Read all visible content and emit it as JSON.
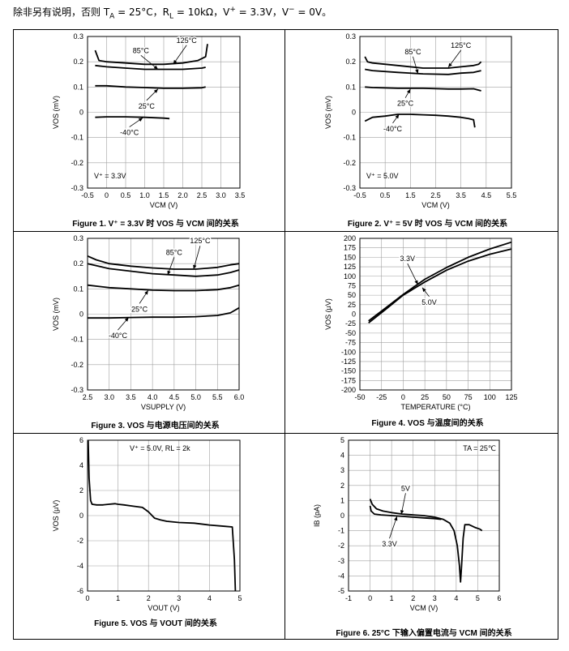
{
  "header": {
    "prefix": "除非另有说明，否则 T",
    "ta_sub": "A",
    "mid1": " = 25°C，R",
    "rl_sub": "L",
    "mid2": " = 10kΩ，V",
    "vplus_sup": "+",
    "mid3": " = 3.3V，V",
    "vminus_sup": "−",
    "end": " = 0V。"
  },
  "chart_data": [
    {
      "id": "fig1",
      "type": "line",
      "caption": "Figure 1. V⁺ = 3.3V 时 VOS 与 VCM 间的关系",
      "xlabel": "VCM (V)",
      "ylabel": "VOS (mV)",
      "xlim": [
        -0.5,
        3.5
      ],
      "ylim": [
        -0.3,
        0.3
      ],
      "xticks": [
        -0.5,
        0,
        0.5,
        1,
        1.5,
        2,
        2.5,
        3,
        3.5
      ],
      "xtick_labels": [
        "-0.5",
        "0",
        "0.5",
        "1.0",
        "1.5",
        "2.0",
        "2.5",
        "3.0",
        "3.5"
      ],
      "yticks": [
        -0.3,
        -0.2,
        -0.1,
        0,
        0.1,
        0.2,
        0.3
      ],
      "ytick_labels": [
        "-0.3",
        "-0.2",
        "-0.1",
        "0",
        "0.1",
        "0.2",
        "0.3"
      ],
      "note": "V⁺ = 3.3V",
      "series": [
        {
          "name": "125°C",
          "x": [
            -0.3,
            -0.2,
            0,
            0.5,
            1,
            1.5,
            2,
            2.4,
            2.6,
            2.65
          ],
          "y": [
            0.245,
            0.205,
            0.2,
            0.195,
            0.19,
            0.19,
            0.195,
            0.205,
            0.22,
            0.27
          ]
        },
        {
          "name": "85°C",
          "x": [
            -0.3,
            0,
            0.5,
            1,
            1.5,
            2,
            2.5,
            2.6
          ],
          "y": [
            0.185,
            0.18,
            0.175,
            0.17,
            0.17,
            0.17,
            0.175,
            0.178
          ]
        },
        {
          "name": "25°C",
          "x": [
            -0.3,
            0,
            0.5,
            1,
            1.5,
            2,
            2.5,
            2.6
          ],
          "y": [
            0.105,
            0.105,
            0.1,
            0.098,
            0.095,
            0.095,
            0.097,
            0.1
          ]
        },
        {
          "name": "-40°C",
          "x": [
            -0.3,
            0,
            0.5,
            1,
            1.5,
            1.65
          ],
          "y": [
            -0.02,
            -0.018,
            -0.018,
            -0.02,
            -0.023,
            -0.025
          ]
        }
      ],
      "labels": [
        {
          "text": "125°C",
          "x": 2.1,
          "y": 0.275,
          "tx": 1.75,
          "ty": 0.19
        },
        {
          "text": "85°C",
          "x": 0.9,
          "y": 0.235,
          "tx": 1.35,
          "ty": 0.17
        },
        {
          "text": "25°C",
          "x": 1.05,
          "y": 0.015,
          "tx": 1.35,
          "ty": 0.092
        },
        {
          "text": "-40°C",
          "x": 0.6,
          "y": -0.09,
          "tx": 0.95,
          "ty": -0.022
        }
      ]
    },
    {
      "id": "fig2",
      "type": "line",
      "caption": "Figure 2. V⁺ = 5V 时 VOS 与 VCM 间的关系",
      "xlabel": "VCM (V)",
      "ylabel": "VOS (mV)",
      "xlim": [
        -0.5,
        5.5
      ],
      "ylim": [
        -0.3,
        0.3
      ],
      "xticks": [
        -0.5,
        0.5,
        1.5,
        2.5,
        3.5,
        4.5,
        5.5
      ],
      "xtick_labels": [
        "-0.5",
        "0.5",
        "1.5",
        "2.5",
        "3.5",
        "4.5",
        "5.5"
      ],
      "yticks": [
        -0.3,
        -0.2,
        -0.1,
        0,
        0.1,
        0.2,
        0.3
      ],
      "ytick_labels": [
        "-0.3",
        "-0.2",
        "-0.1",
        "0",
        "0.1",
        "0.2",
        "0.3"
      ],
      "note": "V⁺ = 5.0V",
      "series": [
        {
          "name": "125°C",
          "x": [
            -0.3,
            -0.2,
            0,
            1,
            2,
            3,
            3.5,
            4,
            4.2,
            4.3
          ],
          "y": [
            0.22,
            0.2,
            0.195,
            0.185,
            0.175,
            0.175,
            0.18,
            0.185,
            0.19,
            0.2
          ]
        },
        {
          "name": "85°C",
          "x": [
            -0.3,
            0,
            1,
            2,
            3,
            3.5,
            4,
            4.3
          ],
          "y": [
            0.17,
            0.165,
            0.158,
            0.152,
            0.15,
            0.155,
            0.158,
            0.165
          ]
        },
        {
          "name": "25°C",
          "x": [
            -0.3,
            0,
            1,
            2,
            3,
            3.5,
            4,
            4.3
          ],
          "y": [
            0.1,
            0.098,
            0.095,
            0.095,
            0.092,
            0.092,
            0.093,
            0.085
          ]
        },
        {
          "name": "-40°C",
          "x": [
            -0.3,
            0,
            0.5,
            1,
            1.5,
            2,
            2.5,
            3,
            3.5,
            3.8,
            4.0,
            4.05
          ],
          "y": [
            -0.035,
            -0.02,
            -0.015,
            -0.008,
            -0.008,
            -0.01,
            -0.012,
            -0.015,
            -0.02,
            -0.025,
            -0.03,
            -0.06
          ]
        }
      ],
      "labels": [
        {
          "text": "125°C",
          "x": 3.5,
          "y": 0.255,
          "tx": 3.0,
          "ty": 0.178
        },
        {
          "text": "85°C",
          "x": 1.6,
          "y": 0.23,
          "tx": 1.8,
          "ty": 0.153
        },
        {
          "text": "25°C",
          "x": 1.3,
          "y": 0.025,
          "tx": 1.5,
          "ty": 0.092
        },
        {
          "text": "-40°C",
          "x": 0.8,
          "y": -0.075,
          "tx": 1.05,
          "ty": -0.008
        }
      ]
    },
    {
      "id": "fig3",
      "type": "line",
      "caption": "Figure 3. VOS 与电源电压间的关系",
      "xlabel": "VSUPPLY (V)",
      "ylabel": "VOS (mV)",
      "xlim": [
        2.5,
        6.0
      ],
      "ylim": [
        -0.3,
        0.3
      ],
      "xticks": [
        2.5,
        3.0,
        3.5,
        4.0,
        4.5,
        5.0,
        5.5,
        6.0
      ],
      "xtick_labels": [
        "2.5",
        "3.0",
        "3.5",
        "4.0",
        "4.5",
        "5.0",
        "5.5",
        "6.0"
      ],
      "yticks": [
        -0.3,
        -0.2,
        -0.1,
        0,
        0.1,
        0.2,
        0.3
      ],
      "ytick_labels": [
        "-0.3",
        "-0.2",
        "-0.1",
        "0",
        "0.1",
        "0.2",
        "0.3"
      ],
      "series": [
        {
          "name": "125°C",
          "x": [
            2.5,
            2.7,
            3.0,
            3.5,
            4.0,
            4.5,
            5.0,
            5.5,
            5.8,
            6.0
          ],
          "y": [
            0.23,
            0.215,
            0.2,
            0.19,
            0.183,
            0.178,
            0.178,
            0.185,
            0.195,
            0.2
          ]
        },
        {
          "name": "85°C",
          "x": [
            2.5,
            3.0,
            3.5,
            4.0,
            4.5,
            5.0,
            5.5,
            5.8,
            6.0
          ],
          "y": [
            0.2,
            0.18,
            0.17,
            0.16,
            0.155,
            0.15,
            0.155,
            0.165,
            0.175
          ]
        },
        {
          "name": "25°C",
          "x": [
            2.5,
            3.0,
            3.5,
            4.0,
            4.5,
            5.0,
            5.5,
            5.8,
            6.0
          ],
          "y": [
            0.115,
            0.105,
            0.1,
            0.095,
            0.093,
            0.093,
            0.097,
            0.105,
            0.115
          ]
        },
        {
          "name": "-40°C",
          "x": [
            2.5,
            3.0,
            3.5,
            4.0,
            4.5,
            5.0,
            5.5,
            5.8,
            6.0
          ],
          "y": [
            -0.015,
            -0.015,
            -0.013,
            -0.012,
            -0.012,
            -0.01,
            -0.005,
            0.005,
            0.025
          ]
        }
      ],
      "labels": [
        {
          "text": "125°C",
          "x": 5.1,
          "y": 0.28,
          "tx": 4.95,
          "ty": 0.178
        },
        {
          "text": "85°C",
          "x": 4.5,
          "y": 0.235,
          "tx": 4.35,
          "ty": 0.155
        },
        {
          "text": "25°C",
          "x": 3.7,
          "y": 0.01,
          "tx": 3.9,
          "ty": 0.094
        },
        {
          "text": "-40°C",
          "x": 3.2,
          "y": -0.095,
          "tx": 3.45,
          "ty": -0.013
        }
      ]
    },
    {
      "id": "fig4",
      "type": "line",
      "caption": "Figure 4. VOS 与温度间的关系",
      "xlabel": "TEMPERATURE (°C)",
      "ylabel": "VOS (μV)",
      "xlim": [
        -50,
        125
      ],
      "ylim": [
        -200,
        200
      ],
      "xticks": [
        -50,
        -25,
        0,
        25,
        50,
        75,
        100,
        125
      ],
      "xtick_labels": [
        "-50",
        "-25",
        "0",
        "25",
        "50",
        "75",
        "100",
        "125"
      ],
      "yticks": [
        -200,
        -175,
        -150,
        -125,
        -100,
        -75,
        -50,
        -25,
        0,
        25,
        50,
        75,
        100,
        125,
        150,
        175,
        200
      ],
      "ytick_labels": [
        "-200",
        "-175",
        "-150",
        "-125",
        "-100",
        "-75",
        "-50",
        "-25",
        "0",
        "25",
        "50",
        "75",
        "100",
        "125",
        "150",
        "175",
        "200"
      ],
      "series": [
        {
          "name": "3.3V",
          "x": [
            -40,
            -20,
            0,
            25,
            50,
            75,
            100,
            125
          ],
          "y": [
            -18,
            17,
            52,
            92,
            123,
            150,
            172,
            190
          ]
        },
        {
          "name": "5.0V",
          "x": [
            -40,
            -20,
            0,
            25,
            50,
            75,
            100,
            125
          ],
          "y": [
            -23,
            13,
            50,
            85,
            116,
            140,
            158,
            172
          ]
        }
      ],
      "labels": [
        {
          "text": "3.3V",
          "x": 5,
          "y": 140,
          "tx": 17,
          "ty": 78
        },
        {
          "text": "5.0V",
          "x": 30,
          "y": 25,
          "tx": 22,
          "ty": 70
        }
      ]
    },
    {
      "id": "fig5",
      "type": "line",
      "caption": "Figure 5. VOS 与 VOUT 间的关系",
      "xlabel": "VOUT (V)",
      "ylabel": "VOS (μV)",
      "xlim": [
        0,
        5
      ],
      "ylim": [
        -6,
        6
      ],
      "xticks": [
        0,
        1,
        2,
        3,
        4,
        5
      ],
      "xtick_labels": [
        "0",
        "1",
        "2",
        "3",
        "4",
        "5"
      ],
      "yticks": [
        -6,
        -4,
        -2,
        0,
        2,
        4,
        6
      ],
      "ytick_labels": [
        "-6",
        "-4",
        "-2",
        "0",
        "2",
        "4",
        "6"
      ],
      "note": "V⁺ = 5.0V, RL = 2k",
      "series": [
        {
          "name": "VOS",
          "x": [
            0.02,
            0.05,
            0.1,
            0.15,
            0.3,
            0.5,
            0.7,
            0.9,
            1.0,
            1.2,
            1.5,
            1.8,
            2.0,
            2.2,
            2.4,
            2.6,
            3.0,
            3.5,
            4.0,
            4.5,
            4.75,
            4.82,
            4.85
          ],
          "y": [
            6,
            3.0,
            1.2,
            0.9,
            0.85,
            0.85,
            0.9,
            0.95,
            0.9,
            0.85,
            0.75,
            0.65,
            0.3,
            -0.2,
            -0.35,
            -0.45,
            -0.55,
            -0.6,
            -0.75,
            -0.85,
            -0.9,
            -3.5,
            -6
          ]
        }
      ]
    },
    {
      "id": "fig6",
      "type": "line",
      "caption": "Figure 6. 25°C 下输入偏置电流与 VCM 间的关系",
      "xlabel": "VCM (V)",
      "ylabel": "IB (pA)",
      "xlim": [
        -1,
        6
      ],
      "ylim": [
        -5,
        5
      ],
      "xticks": [
        -1,
        0,
        1,
        2,
        3,
        4,
        5,
        6
      ],
      "xtick_labels": [
        "-1",
        "0",
        "1",
        "2",
        "3",
        "4",
        "5",
        "6"
      ],
      "yticks": [
        -5,
        -4,
        -3,
        -2,
        -1,
        0,
        1,
        2,
        3,
        4,
        5
      ],
      "ytick_labels": [
        "-5",
        "-4",
        "-3",
        "-2",
        "-1",
        "0",
        "1",
        "2",
        "3",
        "4",
        "5"
      ],
      "note": "TA = 25℃",
      "series": [
        {
          "name": "5V",
          "x": [
            0,
            0.1,
            0.3,
            0.6,
            1,
            1.5,
            2,
            2.5,
            3,
            3.4,
            3.7,
            3.9,
            4.05,
            4.15,
            4.2,
            4.25,
            4.32,
            4.4,
            4.6,
            4.9,
            5.1,
            5.2
          ],
          "y": [
            1.1,
            0.75,
            0.45,
            0.3,
            0.2,
            0.1,
            0.05,
            0,
            -0.1,
            -0.25,
            -0.5,
            -1.0,
            -2.0,
            -3.3,
            -4.4,
            -3.3,
            -1.5,
            -0.6,
            -0.6,
            -0.8,
            -0.9,
            -1.0
          ]
        },
        {
          "name": "3.3V",
          "x": [
            0,
            0.05,
            0.2,
            0.5,
            1,
            1.5,
            2,
            2.5,
            3,
            3.3
          ],
          "y": [
            0.65,
            0.3,
            0.1,
            0.05,
            0,
            -0.05,
            -0.1,
            -0.15,
            -0.2,
            -0.25
          ]
        }
      ],
      "labels": [
        {
          "text": "5V",
          "x": 1.65,
          "y": 1.65,
          "tx": 1.45,
          "ty": 0.08
        },
        {
          "text": "3.3V",
          "x": 0.9,
          "y": -2.05,
          "tx": 1.25,
          "ty": -0.05
        }
      ]
    }
  ]
}
